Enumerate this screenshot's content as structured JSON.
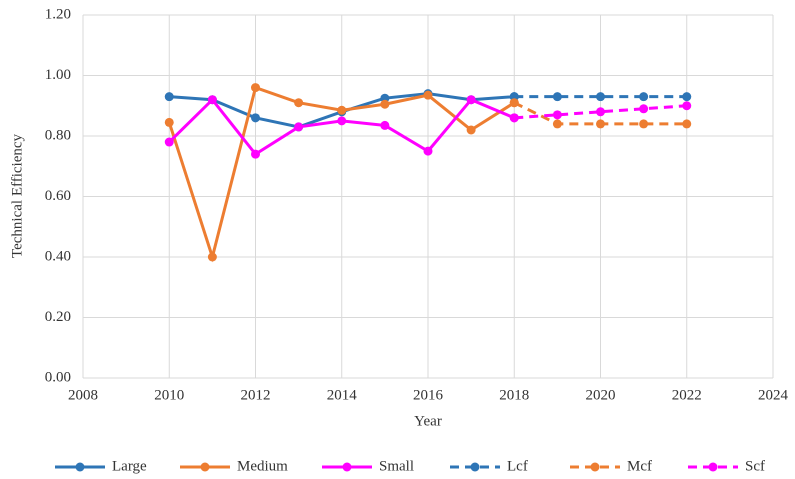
{
  "chart_data": {
    "type": "line",
    "x_label": "Year",
    "y_label": "Technical Efficiency",
    "xlim": [
      2008,
      2024
    ],
    "xticks": [
      2008,
      2010,
      2012,
      2014,
      2016,
      2018,
      2020,
      2022,
      2024
    ],
    "ylim": [
      0,
      1.2
    ],
    "yticks": [
      {
        "value": 0,
        "label": "0.00"
      },
      {
        "value": 0.2,
        "label": "0.20"
      },
      {
        "value": 0.4,
        "label": "0.40"
      },
      {
        "value": 0.6,
        "label": "0.60"
      },
      {
        "value": 0.8,
        "label": "0.80"
      },
      {
        "value": 1.0,
        "label": "1.00"
      },
      {
        "value": 1.2,
        "label": "1.20"
      }
    ],
    "grid": true,
    "legend": "bottom",
    "series": [
      {
        "name": "Large",
        "color": "#2e75b6",
        "line_style": "solid",
        "x": [
          2010,
          2011,
          2012,
          2013,
          2014,
          2015,
          2016,
          2017,
          2018
        ],
        "values": [
          0.93,
          0.92,
          0.86,
          0.83,
          0.88,
          0.925,
          0.94,
          0.92,
          0.93
        ]
      },
      {
        "name": "Medium",
        "color": "#ed7d31",
        "line_style": "solid",
        "x": [
          2010,
          2011,
          2012,
          2013,
          2014,
          2015,
          2016,
          2017,
          2018
        ],
        "values": [
          0.845,
          0.4,
          0.96,
          0.91,
          0.885,
          0.905,
          0.935,
          0.82,
          0.91
        ]
      },
      {
        "name": "Small",
        "color": "#ff00ff",
        "line_style": "solid",
        "x": [
          2010,
          2011,
          2012,
          2013,
          2014,
          2015,
          2016,
          2017,
          2018
        ],
        "values": [
          0.78,
          0.92,
          0.74,
          0.83,
          0.85,
          0.835,
          0.75,
          0.92,
          0.86
        ]
      },
      {
        "name": "Lcf",
        "color": "#2e75b6",
        "line_style": "dashed",
        "x": [
          2018,
          2019,
          2020,
          2021,
          2022
        ],
        "values": [
          0.93,
          0.93,
          0.93,
          0.93,
          0.93
        ]
      },
      {
        "name": "Mcf",
        "color": "#ed7d31",
        "line_style": "dashed",
        "x": [
          2018,
          2019,
          2020,
          2021,
          2022
        ],
        "values": [
          0.91,
          0.84,
          0.84,
          0.84,
          0.84
        ]
      },
      {
        "name": "Scf",
        "color": "#ff00ff",
        "line_style": "dashed",
        "x": [
          2018,
          2019,
          2020,
          2021,
          2022
        ],
        "values": [
          0.86,
          0.87,
          0.88,
          0.89,
          0.9
        ]
      }
    ]
  }
}
